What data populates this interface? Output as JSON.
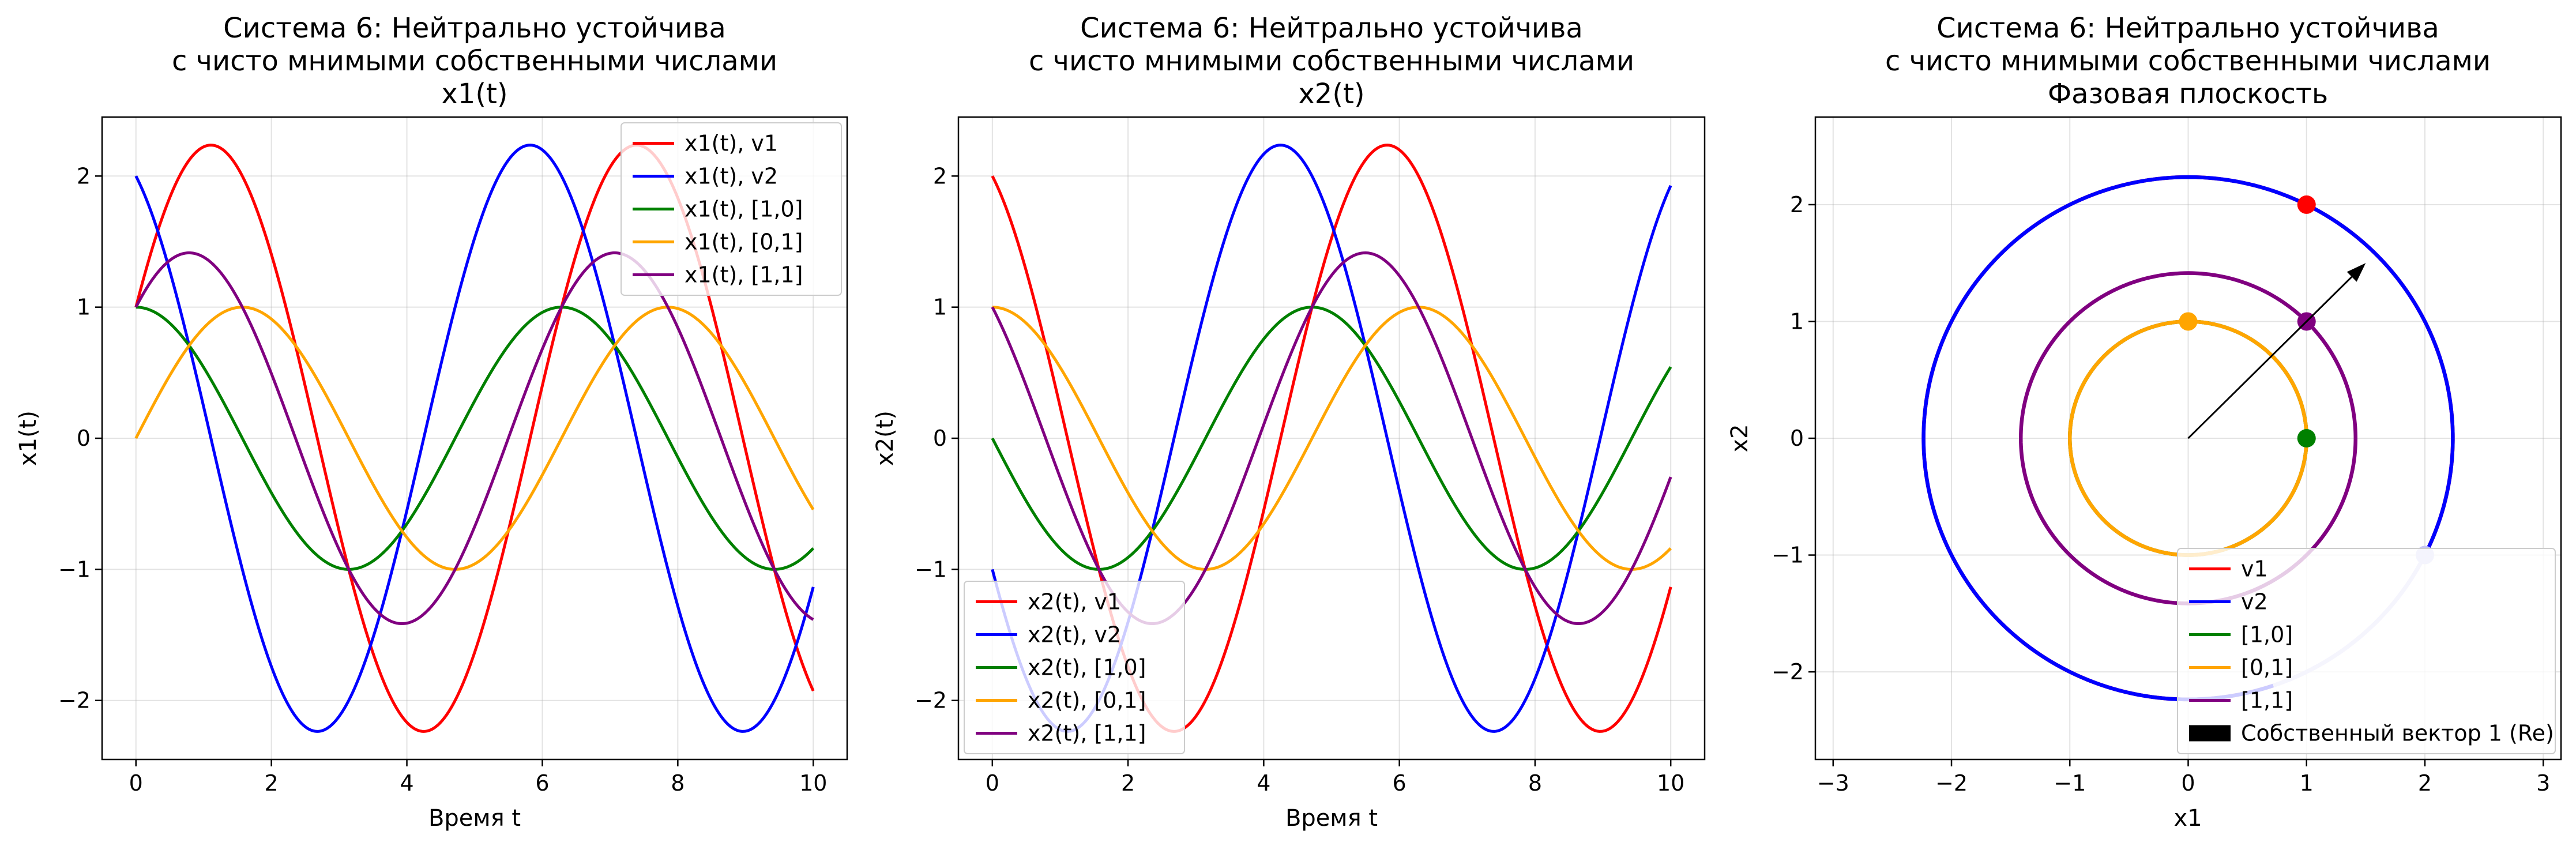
{
  "chart_data": [
    {
      "type": "line",
      "title": [
        "Система 6: Нейтрально устойчива",
        "с чисто мнимыми собственными числами",
        "x1(t)"
      ],
      "xlabel": "Время t",
      "ylabel": "x1(t)",
      "xlim": [
        -0.5,
        10.5
      ],
      "ylim": [
        -2.45,
        2.45
      ],
      "xticks": [
        0,
        2,
        4,
        6,
        8,
        10
      ],
      "xtick_labels": [
        "0",
        "2",
        "4",
        "6",
        "8",
        "10"
      ],
      "yticks": [
        -2,
        -1,
        0,
        1,
        2
      ],
      "ytick_labels": [
        "−2",
        "−1",
        "0",
        "1",
        "2"
      ],
      "grid": true,
      "legend_position": "top-right",
      "series": [
        {
          "name": "x1(t), v1",
          "color": "#ff0000",
          "function": "x1",
          "initial": [
            1,
            2
          ]
        },
        {
          "name": "x1(t), v2",
          "color": "#0000ff",
          "function": "x1",
          "initial": [
            2,
            -1
          ]
        },
        {
          "name": "x1(t), [1,0]",
          "color": "#008000",
          "function": "x1",
          "initial": [
            1,
            0
          ]
        },
        {
          "name": "x1(t), [0,1]",
          "color": "#ffa500",
          "function": "x1",
          "initial": [
            0,
            1
          ]
        },
        {
          "name": "x1(t), [1,1]",
          "color": "#800080",
          "function": "x1",
          "initial": [
            1,
            1
          ]
        }
      ]
    },
    {
      "type": "line",
      "title": [
        "Система 6: Нейтрально устойчива",
        "с чисто мнимыми собственными числами",
        "x2(t)"
      ],
      "xlabel": "Время t",
      "ylabel": "x2(t)",
      "xlim": [
        -0.5,
        10.5
      ],
      "ylim": [
        -2.45,
        2.45
      ],
      "xticks": [
        0,
        2,
        4,
        6,
        8,
        10
      ],
      "xtick_labels": [
        "0",
        "2",
        "4",
        "6",
        "8",
        "10"
      ],
      "yticks": [
        -2,
        -1,
        0,
        1,
        2
      ],
      "ytick_labels": [
        "−2",
        "−1",
        "0",
        "1",
        "2"
      ],
      "grid": true,
      "legend_position": "bottom-left",
      "series": [
        {
          "name": "x2(t), v1",
          "color": "#ff0000",
          "function": "x2",
          "initial": [
            1,
            2
          ]
        },
        {
          "name": "x2(t), v2",
          "color": "#0000ff",
          "function": "x2",
          "initial": [
            2,
            -1
          ]
        },
        {
          "name": "x2(t), [1,0]",
          "color": "#008000",
          "function": "x2",
          "initial": [
            1,
            0
          ]
        },
        {
          "name": "x2(t), [0,1]",
          "color": "#ffa500",
          "function": "x2",
          "initial": [
            0,
            1
          ]
        },
        {
          "name": "x2(t), [1,1]",
          "color": "#800080",
          "function": "x2",
          "initial": [
            1,
            1
          ]
        }
      ]
    },
    {
      "type": "line",
      "title": [
        "Система 6: Нейтрально устойчива",
        "с чисто мнимыми собственными числами",
        "Фазовая плоскость"
      ],
      "xlabel": "x1",
      "ylabel": "x2",
      "xlim": [
        -3.15,
        3.15
      ],
      "ylim": [
        -2.75,
        2.75
      ],
      "xticks": [
        -3,
        -2,
        -1,
        0,
        1,
        2,
        3
      ],
      "xtick_labels": [
        "−3",
        "−2",
        "−1",
        "0",
        "1",
        "2",
        "3"
      ],
      "yticks": [
        -2,
        -1,
        0,
        1,
        2
      ],
      "ytick_labels": [
        "−2",
        "−1",
        "0",
        "1",
        "2"
      ],
      "grid": true,
      "legend_position": "bottom-right",
      "series": [
        {
          "name": "v1",
          "color": "#ff0000",
          "radius": 2.236,
          "start": [
            1,
            2
          ]
        },
        {
          "name": "v2",
          "color": "#0000ff",
          "radius": 2.236,
          "start": [
            2,
            -1
          ]
        },
        {
          "name": "[1,0]",
          "color": "#008000",
          "radius": 1.0,
          "start": [
            1,
            0
          ]
        },
        {
          "name": "[0,1]",
          "color": "#ffa500",
          "radius": 1.0,
          "start": [
            0,
            1
          ]
        },
        {
          "name": "[1,1]",
          "color": "#800080",
          "radius": 1.414,
          "start": [
            1,
            1
          ]
        }
      ],
      "eigenvector": {
        "name": "Собственный вектор 1 (Re)",
        "from": [
          0,
          0
        ],
        "to": [
          1.5,
          1.5
        ]
      }
    }
  ]
}
